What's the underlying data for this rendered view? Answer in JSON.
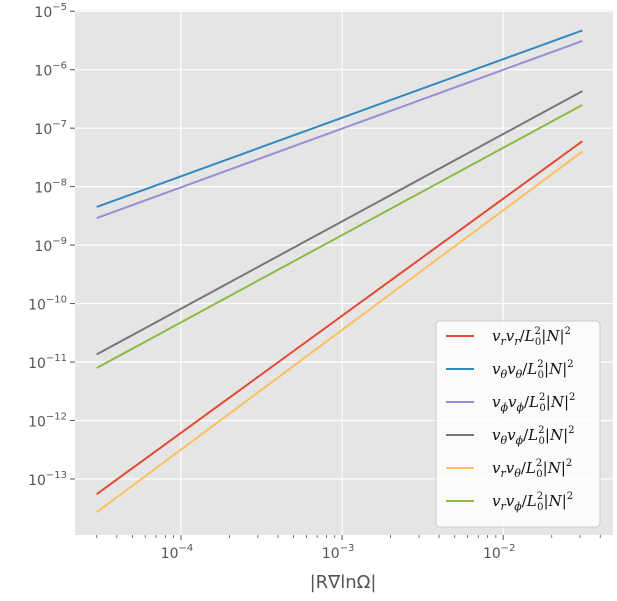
{
  "chart_data": {
    "type": "line",
    "xlabel": "|R∇lnΩ|",
    "ylabel": "",
    "xscale": "log",
    "yscale": "log",
    "xlim": [
      2.2e-05,
      0.048
    ],
    "ylim": [
      1.1e-14,
      1.05e-05
    ],
    "grid": true,
    "legend_position": "lower-right",
    "x": [
      3e-05,
      0.031
    ],
    "x_ticks": [
      {
        "value": 0.0001,
        "base": "10",
        "exp": "−4"
      },
      {
        "value": 0.001,
        "base": "10",
        "exp": "−3"
      },
      {
        "value": 0.01,
        "base": "10",
        "exp": "−2"
      }
    ],
    "y_ticks": [
      {
        "value": 1e-13,
        "base": "10",
        "exp": "−13"
      },
      {
        "value": 1e-12,
        "base": "10",
        "exp": "−12"
      },
      {
        "value": 1e-11,
        "base": "10",
        "exp": "−11"
      },
      {
        "value": 1e-10,
        "base": "10",
        "exp": "−10"
      },
      {
        "value": 1e-09,
        "base": "10",
        "exp": "−9"
      },
      {
        "value": 1e-08,
        "base": "10",
        "exp": "−8"
      },
      {
        "value": 1e-07,
        "base": "10",
        "exp": "−7"
      },
      {
        "value": 1e-06,
        "base": "10",
        "exp": "−6"
      },
      {
        "value": 1e-05,
        "base": "10",
        "exp": "−5"
      }
    ],
    "series": [
      {
        "name": "v_r v_r/L_0^2|N|^2",
        "color": "#E24A33",
        "values": [
          5.5e-14,
          6e-08
        ],
        "legend": {
          "a": "v",
          "as": "r",
          "b": "v",
          "bs": "r"
        }
      },
      {
        "name": "v_θ v_θ/L_0^2|N|^2",
        "color": "#348ABD",
        "values": [
          4.5e-09,
          4.7e-06
        ],
        "legend": {
          "a": "v",
          "as": "θ",
          "b": "v",
          "bs": "θ"
        }
      },
      {
        "name": "v_φ v_φ/L_0^2|N|^2",
        "color": "#988ED5",
        "values": [
          2.9e-09,
          3.1e-06
        ],
        "legend": {
          "a": "v",
          "as": "ϕ",
          "b": "v",
          "bs": "ϕ"
        }
      },
      {
        "name": "v_θ v_φ/L_0^2|N|^2",
        "color": "#777777",
        "values": [
          1.35e-11,
          4.3e-07
        ],
        "legend": {
          "a": "v",
          "as": "θ",
          "b": "v",
          "bs": "ϕ"
        }
      },
      {
        "name": "v_r v_θ/L_0^2|N|^2",
        "color": "#FBC15E",
        "values": [
          2.7e-14,
          4e-08
        ],
        "legend": {
          "a": "v",
          "as": "r",
          "b": "v",
          "bs": "θ"
        }
      },
      {
        "name": "v_r v_φ/L_0^2|N|^2",
        "color": "#8EBA42",
        "values": [
          7.9e-12,
          2.5e-07
        ],
        "legend": {
          "a": "v",
          "as": "r",
          "b": "v",
          "bs": "ϕ"
        }
      }
    ],
    "legend_suffix": {
      "slash": "/",
      "L": "L",
      "sup": "2",
      "sub": "0",
      "open": "|",
      "N": "N",
      "close": "|",
      "sup2": "2"
    }
  }
}
